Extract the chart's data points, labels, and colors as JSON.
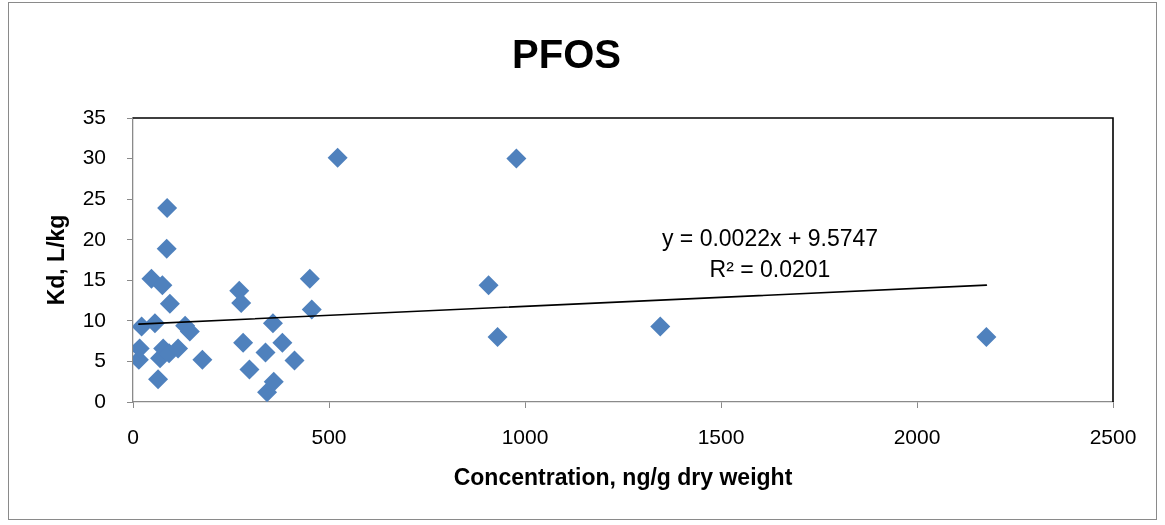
{
  "chart_data": {
    "type": "scatter",
    "title": "PFOS",
    "xlabel": "Concentration, ng/g dry weight",
    "ylabel": "Kd, L/kg",
    "xlim": [
      0,
      2500
    ],
    "xticks": [
      0,
      500,
      1000,
      1500,
      2000,
      2500
    ],
    "ylim": [
      0,
      35
    ],
    "yticks": [
      0,
      5,
      10,
      15,
      20,
      25,
      30,
      35
    ],
    "grid": false,
    "legend": false,
    "marker": "diamond",
    "series": [
      {
        "color": "#4f81bd",
        "x": [
          15,
          17,
          22,
          47,
          56,
          64,
          69,
          75,
          77,
          86,
          87,
          92,
          94,
          115,
          133,
          145,
          177,
          271,
          276,
          281,
          297,
          338,
          342,
          357,
          359,
          381,
          412,
          451,
          456,
          522,
          907,
          930,
          978,
          1345,
          2177
        ],
        "values": [
          5.2,
          6.6,
          9.3,
          15.2,
          9.7,
          2.8,
          5.4,
          14.4,
          6.6,
          18.9,
          23.9,
          6.0,
          12.1,
          6.6,
          9.4,
          8.7,
          5.2,
          13.7,
          12.2,
          7.3,
          4.0,
          6.1,
          1.2,
          9.7,
          2.5,
          7.3,
          5.1,
          15.2,
          11.4,
          30.1,
          14.4,
          8.0,
          30.0,
          9.3,
          8.0
        ]
      },
      {
        "type": "line",
        "marker": "none",
        "color": "#000000",
        "x": [
          15,
          2177
        ],
        "values": [
          9.6,
          14.4
        ]
      }
    ],
    "annotations": [
      "y = 0.0022x + 9.5747",
      "R² = 0.0201"
    ]
  }
}
